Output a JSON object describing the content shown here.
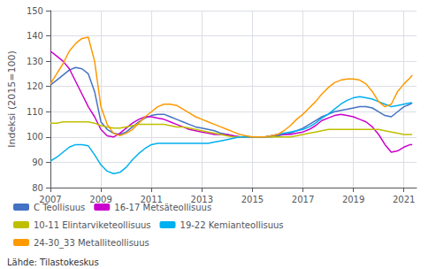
{
  "chart_data": {
    "type": "line",
    "ylabel": "Indeksi (2015=100)",
    "annotations": [
      "Lähde: Tilastokeskus"
    ],
    "xlim": [
      2007.0,
      2021.5
    ],
    "xticks": [
      2007,
      2009,
      2011,
      2013,
      2015,
      2017,
      2019,
      2021
    ],
    "ylim": [
      80,
      150
    ],
    "yticks": [
      80,
      90,
      100,
      110,
      120,
      130,
      140,
      150
    ],
    "grid": true,
    "legend": "bottom",
    "x": [
      2007.0,
      2007.25,
      2007.5,
      2007.75,
      2008.0,
      2008.25,
      2008.5,
      2008.75,
      2009.0,
      2009.25,
      2009.5,
      2009.75,
      2010.0,
      2010.25,
      2010.5,
      2010.75,
      2011.0,
      2011.25,
      2011.5,
      2011.75,
      2012.0,
      2012.25,
      2012.5,
      2012.75,
      2013.0,
      2013.25,
      2013.5,
      2013.75,
      2014.0,
      2014.25,
      2014.5,
      2014.75,
      2015.0,
      2015.25,
      2015.5,
      2015.75,
      2016.0,
      2016.25,
      2016.5,
      2016.75,
      2017.0,
      2017.25,
      2017.5,
      2017.75,
      2018.0,
      2018.25,
      2018.5,
      2018.75,
      2019.0,
      2019.25,
      2019.5,
      2019.75,
      2020.0,
      2020.25,
      2020.5,
      2020.75,
      2021.0,
      2021.25,
      2021.33
    ],
    "series": [
      {
        "name": "C Teollisuus",
        "color": "#4472C4",
        "values": [
          120.5,
          122.5,
          124.5,
          126.5,
          127.5,
          127.0,
          125.0,
          118.0,
          106.0,
          103.0,
          101.5,
          101.0,
          102.0,
          104.0,
          106.0,
          107.5,
          108.5,
          109.0,
          109.0,
          108.0,
          107.0,
          106.0,
          105.0,
          104.0,
          103.5,
          103.0,
          102.5,
          101.5,
          101.0,
          100.5,
          100.0,
          100.0,
          100.0,
          100.0,
          100.0,
          100.0,
          100.5,
          101.0,
          101.5,
          102.5,
          103.5,
          105.0,
          106.5,
          108.0,
          109.0,
          110.0,
          110.5,
          111.0,
          111.5,
          112.0,
          112.0,
          111.5,
          110.0,
          108.5,
          108.0,
          110.0,
          112.0,
          113.0,
          113.5
        ]
      },
      {
        "name": "16-17 Metsäteollisuus",
        "color": "#CC00CC",
        "values": [
          134.0,
          132.0,
          130.0,
          127.0,
          122.0,
          117.0,
          112.0,
          108.0,
          103.0,
          100.5,
          100.0,
          101.5,
          103.5,
          105.5,
          107.0,
          108.0,
          108.0,
          107.5,
          107.0,
          106.0,
          105.0,
          104.0,
          103.0,
          102.5,
          102.0,
          101.5,
          101.0,
          101.0,
          101.0,
          100.5,
          100.0,
          100.0,
          100.0,
          100.0,
          100.0,
          100.5,
          101.0,
          101.0,
          101.0,
          101.5,
          102.0,
          103.0,
          104.5,
          106.5,
          107.5,
          108.5,
          109.0,
          108.5,
          108.0,
          107.0,
          106.0,
          104.0,
          101.0,
          97.0,
          94.0,
          94.5,
          96.0,
          97.0,
          97.0
        ]
      },
      {
        "name": "10-11 Elintarviketeollisuus",
        "color": "#BFBF00",
        "values": [
          105.5,
          105.5,
          106.0,
          106.0,
          106.0,
          106.0,
          106.0,
          105.5,
          104.5,
          104.0,
          103.5,
          103.5,
          104.0,
          104.5,
          105.0,
          105.0,
          105.0,
          105.0,
          105.0,
          104.5,
          104.0,
          104.0,
          103.5,
          103.0,
          102.5,
          102.0,
          101.5,
          101.0,
          100.5,
          100.0,
          100.0,
          100.0,
          100.0,
          100.0,
          100.0,
          100.0,
          100.0,
          100.0,
          100.0,
          100.5,
          101.0,
          101.5,
          102.0,
          102.5,
          103.0,
          103.0,
          103.0,
          103.0,
          103.0,
          103.0,
          103.0,
          103.0,
          103.0,
          102.5,
          102.0,
          101.5,
          101.0,
          101.0,
          101.0
        ]
      },
      {
        "name": "19-22 Kemianteollisuus",
        "color": "#00B0F0",
        "values": [
          90.5,
          92.0,
          94.0,
          96.0,
          97.0,
          97.0,
          96.5,
          93.0,
          89.0,
          86.5,
          85.5,
          86.0,
          88.0,
          91.0,
          93.5,
          95.5,
          97.0,
          97.5,
          97.5,
          97.5,
          97.5,
          97.5,
          97.5,
          97.5,
          97.5,
          97.5,
          98.0,
          98.5,
          99.0,
          99.5,
          100.0,
          100.0,
          100.0,
          100.0,
          100.0,
          100.5,
          101.0,
          101.5,
          102.0,
          102.5,
          103.0,
          104.0,
          105.5,
          107.5,
          109.0,
          111.0,
          113.0,
          114.5,
          115.5,
          116.0,
          115.5,
          115.0,
          114.0,
          113.0,
          112.0,
          112.5,
          113.0,
          113.5,
          113.5
        ]
      },
      {
        "name": "24-30_33 Metalliteollisuus",
        "color": "#FF9900",
        "values": [
          121.0,
          125.0,
          129.0,
          134.0,
          137.0,
          139.0,
          139.5,
          130.0,
          112.0,
          105.0,
          101.5,
          100.5,
          101.5,
          103.0,
          105.5,
          108.0,
          110.0,
          112.0,
          113.0,
          113.0,
          112.5,
          111.0,
          109.5,
          108.0,
          107.0,
          106.0,
          105.0,
          104.0,
          103.0,
          102.0,
          101.0,
          100.5,
          100.0,
          100.0,
          100.0,
          100.5,
          101.0,
          102.5,
          104.5,
          107.0,
          109.0,
          111.5,
          114.0,
          117.0,
          119.5,
          121.5,
          122.5,
          123.0,
          123.0,
          122.5,
          121.0,
          118.0,
          114.0,
          112.0,
          113.0,
          118.0,
          121.0,
          123.5,
          124.5
        ]
      }
    ]
  }
}
